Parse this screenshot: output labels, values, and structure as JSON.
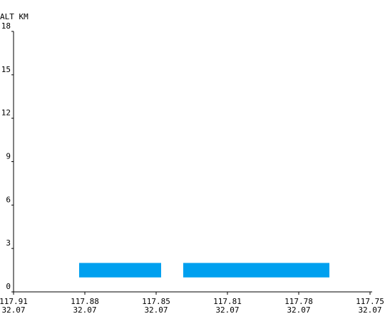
{
  "chart_data": {
    "type": "bar",
    "ylabel": "ALT KM",
    "ylim": [
      0,
      18
    ],
    "yticks": [
      "0",
      "3",
      "6",
      "9",
      "12",
      "15",
      "18"
    ],
    "xticks": [
      {
        "lon": "117.91",
        "lat": "32.07"
      },
      {
        "lon": "117.88",
        "lat": "32.07"
      },
      {
        "lon": "117.85",
        "lat": "32.07"
      },
      {
        "lon": "117.81",
        "lat": "32.07"
      },
      {
        "lon": "117.78",
        "lat": "32.07"
      },
      {
        "lon": "117.75",
        "lat": "32.07"
      }
    ],
    "x_index_range": [
      0,
      5
    ],
    "segments": [
      {
        "x_start": 0.92,
        "x_end": 2.07,
        "y_bottom": 1.0,
        "y_top": 2.0
      },
      {
        "x_start": 2.38,
        "x_end": 4.43,
        "y_bottom": 1.0,
        "y_top": 2.0
      }
    ],
    "color": "#00a0ef"
  }
}
